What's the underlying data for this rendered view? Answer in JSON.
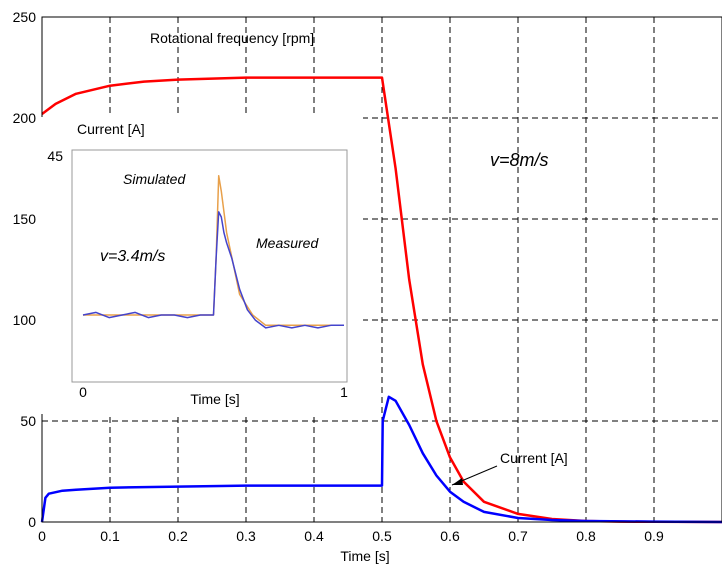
{
  "chart_data": [
    {
      "type": "line",
      "title": "",
      "xlabel": "Time [s]",
      "ylabel": "",
      "xlim": [
        0,
        1
      ],
      "ylim": [
        0,
        250
      ],
      "xticks": [
        "0",
        "0.1",
        "0.2",
        "0.3",
        "0.4",
        "0.5",
        "0.6",
        "0.7",
        "0.8",
        "0.9"
      ],
      "yticks": [
        "0",
        "50",
        "100",
        "150",
        "200",
        "250"
      ],
      "grid": true,
      "series": [
        {
          "name": "Rotational frequency [rpm]",
          "color": "#ff0000",
          "x": [
            0,
            0.02,
            0.05,
            0.1,
            0.15,
            0.2,
            0.25,
            0.3,
            0.35,
            0.4,
            0.45,
            0.5,
            0.52,
            0.54,
            0.56,
            0.58,
            0.6,
            0.62,
            0.65,
            0.7,
            0.75,
            0.8,
            0.85,
            0.9,
            1.0
          ],
          "values": [
            202,
            207,
            212,
            216,
            218,
            219,
            219.5,
            220,
            220,
            220,
            220,
            220,
            175,
            120,
            78,
            50,
            32,
            20,
            10,
            4,
            1.5,
            0.5,
            0.2,
            0.1,
            0
          ]
        },
        {
          "name": "Current [A]",
          "color": "#0000ff",
          "x": [
            0,
            0.005,
            0.01,
            0.03,
            0.05,
            0.1,
            0.2,
            0.3,
            0.4,
            0.5,
            0.501,
            0.51,
            0.52,
            0.54,
            0.56,
            0.58,
            0.6,
            0.62,
            0.65,
            0.7,
            0.75,
            0.8,
            0.9,
            1.0
          ],
          "values": [
            0,
            12,
            14,
            15.5,
            16,
            17,
            17.5,
            18,
            18,
            18,
            50,
            62,
            60,
            48,
            34,
            23,
            15,
            10,
            5,
            2,
            1,
            0.5,
            0.2,
            0
          ]
        }
      ],
      "annotations": [
        "Rotational frequency [rpm]",
        "Current [A]",
        "v=8m/s"
      ]
    },
    {
      "type": "line",
      "title": "",
      "xlabel": "Time [s]",
      "ylabel": "Current [A]",
      "xlim": [
        0,
        1
      ],
      "ylim": [
        0,
        45
      ],
      "xticks": [
        "0",
        "1"
      ],
      "yticks": [
        "45"
      ],
      "grid": false,
      "series": [
        {
          "name": "Simulated",
          "color": "#e8a04a",
          "x": [
            0,
            0.2,
            0.4,
            0.5,
            0.51,
            0.52,
            0.53,
            0.55,
            0.6,
            0.65,
            0.7,
            0.8,
            0.9,
            1.0
          ],
          "values": [
            13,
            13,
            13,
            13,
            24,
            40,
            37,
            29,
            17,
            13,
            11,
            11,
            11,
            11
          ]
        },
        {
          "name": "Measured",
          "color": "#4444cc",
          "x": [
            0,
            0.05,
            0.1,
            0.15,
            0.2,
            0.25,
            0.3,
            0.35,
            0.4,
            0.45,
            0.5,
            0.51,
            0.52,
            0.53,
            0.54,
            0.55,
            0.57,
            0.6,
            0.63,
            0.66,
            0.7,
            0.75,
            0.8,
            0.85,
            0.9,
            0.95,
            1.0
          ],
          "values": [
            13,
            13.5,
            12.5,
            13,
            13.5,
            12.5,
            13,
            13,
            12.5,
            13,
            13,
            24,
            33,
            32,
            29,
            27,
            24,
            18,
            14,
            12,
            10.5,
            11,
            10.5,
            11,
            10.5,
            11,
            11
          ]
        }
      ],
      "annotations": [
        "Simulated",
        "Measured",
        "v=3.4m/s"
      ]
    }
  ]
}
